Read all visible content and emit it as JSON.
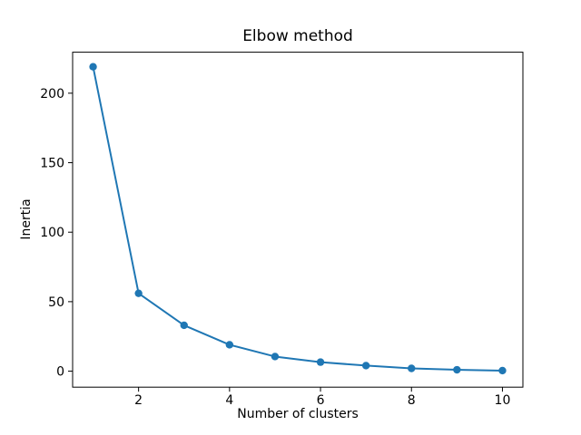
{
  "chart_data": {
    "type": "line",
    "title": "Elbow method",
    "xlabel": "Number of clusters",
    "ylabel": "Inertia",
    "x": [
      1,
      2,
      3,
      4,
      5,
      6,
      7,
      8,
      9,
      10
    ],
    "y": [
      219,
      56,
      33,
      19,
      10.5,
      6.5,
      4,
      2,
      1,
      0.4
    ],
    "series": [
      {
        "name": "inertia",
        "x": [
          1,
          2,
          3,
          4,
          5,
          6,
          7,
          8,
          9,
          10
        ],
        "values": [
          219,
          56,
          33,
          19,
          10.5,
          6.5,
          4,
          2,
          1,
          0.4
        ]
      }
    ],
    "xticks": [
      2,
      4,
      6,
      8,
      10
    ],
    "yticks": [
      0,
      50,
      100,
      150,
      200
    ],
    "xlim": [
      0.55,
      10.45
    ],
    "ylim": [
      -11.5,
      229.5
    ],
    "grid": "off",
    "legend": "none",
    "line_color": "#1f77b4",
    "marker": "circle",
    "marker_color": "#1f77b4",
    "axis_color": "#000000",
    "background_color": "#ffffff"
  }
}
